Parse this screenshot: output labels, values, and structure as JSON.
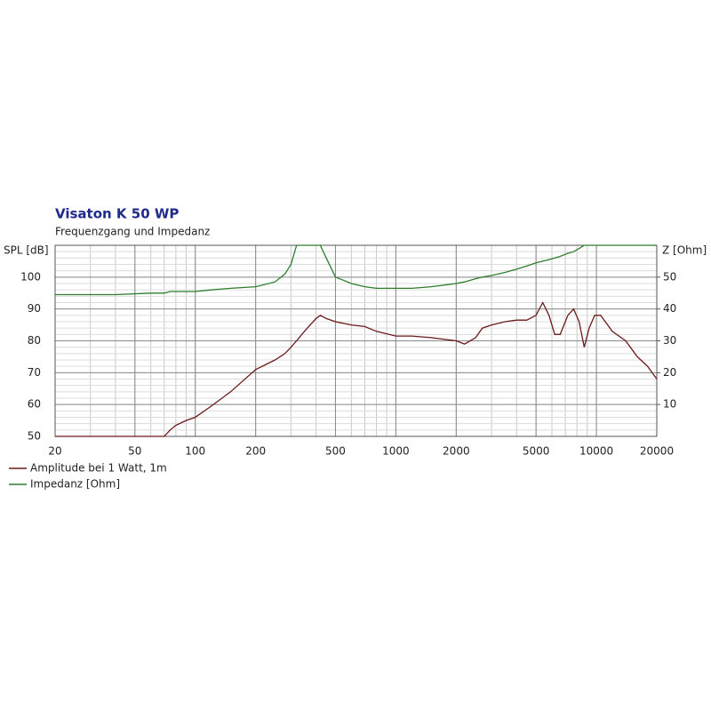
{
  "chart_data": {
    "type": "line",
    "title": "Visaton K 50 WP",
    "subtitle": "Frequenzgang und Impedanz",
    "y_label": "SPL [dB]",
    "y2_label": "Z [Ohm]",
    "x_scale": "log",
    "grid": true,
    "legend": "bottom-left",
    "x": [
      20,
      40,
      60,
      70,
      75,
      80,
      90,
      100,
      120,
      150,
      200,
      250,
      280,
      300,
      320,
      350,
      400,
      420,
      450,
      500,
      600,
      700,
      800,
      1000,
      1200,
      1500,
      2000,
      2200,
      2500,
      2700,
      3000,
      3500,
      4000,
      4500,
      5000,
      5400,
      5800,
      6200,
      6600,
      7200,
      7700,
      8200,
      8700,
      9200,
      9800,
      10500,
      12000,
      14000,
      16000,
      18000,
      20000
    ],
    "series": [
      {
        "name": "Amplitude bei 1 Watt, 1m",
        "color": "#6b1a1a",
        "values": [
          50,
          50,
          50,
          50,
          52,
          53.5,
          55,
          56,
          59.5,
          64,
          71,
          74,
          76,
          78,
          80,
          83,
          87,
          88,
          87,
          86,
          85,
          84.5,
          83,
          81.5,
          81.5,
          81,
          80,
          79,
          81,
          84,
          85,
          86,
          86.5,
          86.5,
          88,
          92,
          88,
          82,
          82,
          88,
          90,
          86,
          78,
          84,
          88,
          88,
          83,
          80,
          75,
          72,
          68
        ]
      },
      {
        "name": "Impedanz [Ohm]",
        "color": "#2e7d2e",
        "axis": "y2",
        "values": [
          44.5,
          44.5,
          45,
          45,
          45.5,
          45.5,
          45.5,
          45.5,
          46,
          46.5,
          47,
          48.5,
          51,
          54,
          60,
          60,
          60,
          60,
          56,
          50,
          48,
          47,
          46.5,
          46.5,
          46.5,
          47,
          48,
          48.5,
          49.5,
          50,
          50.5,
          51.5,
          52.5,
          53.5,
          54.5,
          55,
          55.5,
          56,
          56.5,
          57.5,
          58,
          59,
          60,
          60,
          60,
          60,
          60,
          60,
          60,
          60,
          60
        ]
      }
    ],
    "xlim": [
      20,
      20000
    ],
    "xticks": [
      20,
      50,
      100,
      200,
      500,
      1000,
      2000,
      5000,
      10000,
      20000
    ],
    "ylim": [
      50,
      110
    ],
    "yticks": [
      50,
      60,
      70,
      80,
      90,
      100
    ],
    "y2lim": [
      0,
      60
    ],
    "y2ticks": [
      10,
      20,
      30,
      40,
      50
    ]
  }
}
